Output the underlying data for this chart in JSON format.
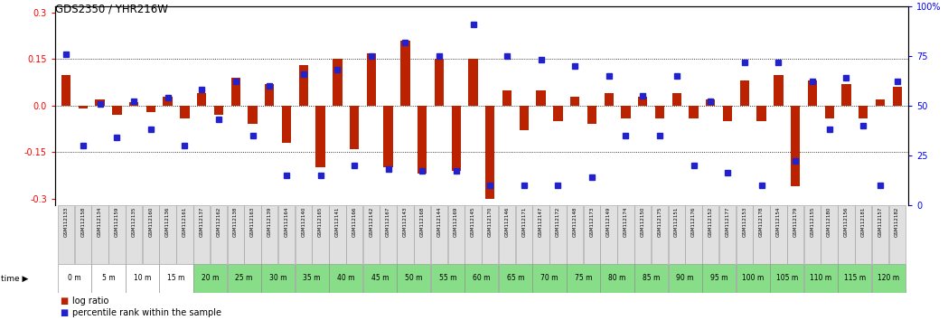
{
  "title": "GDS2350 / YHR216W",
  "samples": [
    "GSM112133",
    "GSM112158",
    "GSM112134",
    "GSM112159",
    "GSM112135",
    "GSM112160",
    "GSM112136",
    "GSM112161",
    "GSM112137",
    "GSM112162",
    "GSM112138",
    "GSM112163",
    "GSM112139",
    "GSM112164",
    "GSM112140",
    "GSM112165",
    "GSM112141",
    "GSM112166",
    "GSM112142",
    "GSM112167",
    "GSM112143",
    "GSM112168",
    "GSM112144",
    "GSM112169",
    "GSM112145",
    "GSM112170",
    "GSM112146",
    "GSM112171",
    "GSM112147",
    "GSM112172",
    "GSM112148",
    "GSM112173",
    "GSM112149",
    "GSM112174",
    "GSM112150",
    "GSM112175",
    "GSM112151",
    "GSM112176",
    "GSM112152",
    "GSM112177",
    "GSM112153",
    "GSM112178",
    "GSM112154",
    "GSM112179",
    "GSM112155",
    "GSM112180",
    "GSM112156",
    "GSM112181",
    "GSM112157",
    "GSM112182"
  ],
  "time_labels": [
    "0 m",
    "5 m",
    "10 m",
    "15 m",
    "20 m",
    "25 m",
    "30 m",
    "35 m",
    "40 m",
    "45 m",
    "50 m",
    "55 m",
    "60 m",
    "65 m",
    "70 m",
    "75 m",
    "80 m",
    "85 m",
    "90 m",
    "95 m",
    "100 m",
    "105 m",
    "110 m",
    "115 m",
    "120 m"
  ],
  "log_ratio": [
    0.1,
    -0.01,
    0.02,
    -0.03,
    0.01,
    -0.02,
    0.03,
    -0.04,
    0.04,
    -0.03,
    0.09,
    -0.06,
    0.07,
    -0.12,
    0.13,
    -0.2,
    0.15,
    -0.14,
    0.17,
    -0.2,
    0.21,
    -0.22,
    0.15,
    -0.21,
    0.15,
    -0.3,
    0.05,
    -0.08,
    0.05,
    -0.05,
    0.03,
    -0.06,
    0.04,
    -0.04,
    0.03,
    -0.04,
    0.04,
    -0.04,
    0.02,
    -0.05,
    0.08,
    -0.05,
    0.1,
    -0.26,
    0.08,
    -0.04,
    0.07,
    -0.04,
    0.02,
    0.06
  ],
  "percentile": [
    76,
    30,
    51,
    34,
    52,
    38,
    54,
    30,
    58,
    43,
    62,
    35,
    60,
    15,
    66,
    15,
    68,
    20,
    75,
    18,
    82,
    17,
    75,
    17,
    91,
    10,
    75,
    10,
    73,
    10,
    70,
    14,
    65,
    35,
    55,
    35,
    65,
    20,
    52,
    16,
    72,
    10,
    72,
    22,
    62,
    38,
    64,
    40,
    10,
    62
  ],
  "bar_color": "#bb2200",
  "dot_color": "#2222cc",
  "ylim": [
    -0.32,
    0.32
  ],
  "ylim2": [
    0,
    100
  ],
  "yticks_left": [
    -0.3,
    -0.15,
    0.0,
    0.15,
    0.3
  ],
  "yticks_right": [
    0,
    25,
    50,
    75,
    100
  ],
  "time_white_count": 4,
  "time_green": "#88dd88",
  "label_bg": "#e0e0e0",
  "label_border": "#999999"
}
